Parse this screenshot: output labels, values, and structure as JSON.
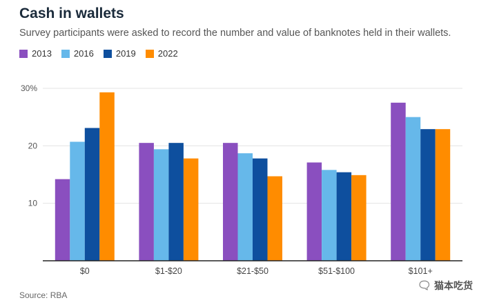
{
  "title": "Cash in wallets",
  "subtitle": "Survey participants were asked to record the number and value of banknotes held in their wallets.",
  "source": "Source: RBA",
  "watermark": "猫本吃货",
  "chart_data": {
    "type": "bar",
    "title": "Cash in wallets",
    "xlabel": "",
    "ylabel": "",
    "ylim": [
      0,
      30
    ],
    "y_ticks": [
      10,
      20,
      30
    ],
    "y_tick_labels": [
      "10",
      "20",
      "30%"
    ],
    "categories": [
      "$0",
      "$1-$20",
      "$21-$50",
      "$51-$100",
      "$101+"
    ],
    "legend_position": "top-left",
    "series": [
      {
        "name": "2013",
        "color": "#8a4fbf",
        "values": [
          14.2,
          20.5,
          20.5,
          17.1,
          27.5
        ]
      },
      {
        "name": "2016",
        "color": "#66b8ea",
        "values": [
          20.7,
          19.4,
          18.7,
          15.8,
          25.0
        ]
      },
      {
        "name": "2019",
        "color": "#0e4f9e",
        "values": [
          23.1,
          20.5,
          17.8,
          15.4,
          22.9
        ]
      },
      {
        "name": "2022",
        "color": "#ff8c00",
        "values": [
          29.3,
          17.8,
          14.7,
          14.9,
          22.9
        ]
      }
    ]
  }
}
